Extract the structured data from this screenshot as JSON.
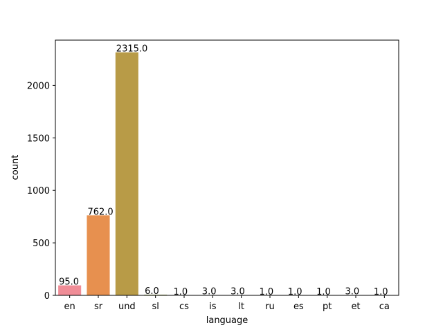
{
  "chart_data": {
    "type": "bar",
    "title": "",
    "xlabel": "language",
    "ylabel": "count",
    "categories": [
      "en",
      "sr",
      "und",
      "sl",
      "cs",
      "is",
      "lt",
      "ru",
      "es",
      "pt",
      "et",
      "ca"
    ],
    "values": [
      95,
      762,
      2315,
      6,
      1,
      3,
      3,
      1,
      1,
      1,
      3,
      1
    ],
    "data_labels": [
      "95.0",
      "762.0",
      "2315.0",
      "6.0",
      "1.0",
      "3.0",
      "3.0",
      "1.0",
      "1.0",
      "1.0",
      "3.0",
      "1.0"
    ],
    "ylim": [
      0,
      2431
    ],
    "yticks": [
      0,
      500,
      1000,
      1500,
      2000
    ],
    "colors": [
      "#f08d97",
      "#e7904f",
      "#b89b47",
      "#94a43c",
      "#63ad3c",
      "#4eb07c",
      "#4caf9f",
      "#4eaec0",
      "#5fa6e1",
      "#9a95e8",
      "#d184e3",
      "#ed83c8"
    ],
    "grid": false,
    "legend": "none"
  }
}
